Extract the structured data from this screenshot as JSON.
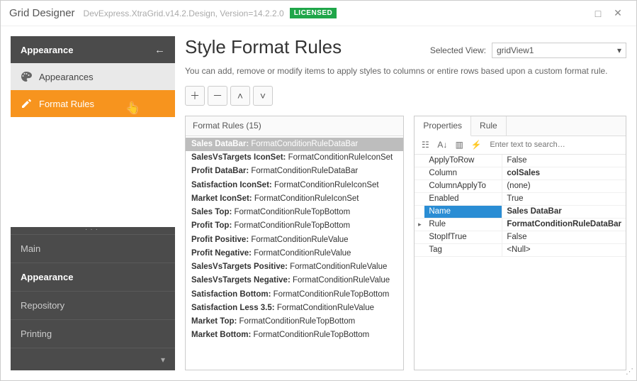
{
  "titlebar": {
    "title": "Grid Designer",
    "subtitle": "DevExpress.XtraGrid.v14.2.Design, Version=14.2.2.0",
    "badge": "LICENSED"
  },
  "sidebar": {
    "header": "Appearance",
    "items": [
      {
        "label": "Appearances"
      },
      {
        "label": "Format Rules"
      }
    ],
    "categories": [
      {
        "label": "Main"
      },
      {
        "label": "Appearance"
      },
      {
        "label": "Repository"
      },
      {
        "label": "Printing"
      }
    ]
  },
  "content": {
    "heading": "Style Format Rules",
    "selectedViewLabel": "Selected View:",
    "selectedView": "gridView1",
    "description": "You can add, remove or modify items to apply styles to columns or entire rows based upon a custom format rule.",
    "rulesPanelTitle": "Format Rules (15)",
    "tabs": {
      "properties": "Properties",
      "rule": "Rule"
    },
    "searchPlaceholder": "Enter text to search…",
    "rules": [
      {
        "name": "Sales DataBar",
        "type": "FormatConditionRuleDataBar",
        "selected": true
      },
      {
        "name": "SalesVsTargets IconSet",
        "type": "FormatConditionRuleIconSet"
      },
      {
        "name": "Profit DataBar",
        "type": "FormatConditionRuleDataBar"
      },
      {
        "name": "Satisfaction IconSet",
        "type": "FormatConditionRuleIconSet"
      },
      {
        "name": "Market IconSet",
        "type": "FormatConditionRuleIconSet"
      },
      {
        "name": "Sales Top",
        "type": "FormatConditionRuleTopBottom"
      },
      {
        "name": "Profit Top",
        "type": "FormatConditionRuleTopBottom"
      },
      {
        "name": "Profit Positive",
        "type": "FormatConditionRuleValue"
      },
      {
        "name": "Profit Negative",
        "type": "FormatConditionRuleValue"
      },
      {
        "name": "SalesVsTargets Positive",
        "type": "FormatConditionRuleValue"
      },
      {
        "name": "SalesVsTargets Negative",
        "type": "FormatConditionRuleValue"
      },
      {
        "name": "Satisfaction Bottom",
        "type": "FormatConditionRuleTopBottom"
      },
      {
        "name": "Satisfaction Less 3.5",
        "type": "FormatConditionRuleValue"
      },
      {
        "name": "Market Top",
        "type": "FormatConditionRuleTopBottom"
      },
      {
        "name": "Market Bottom",
        "type": "FormatConditionRuleTopBottom"
      }
    ],
    "properties": [
      {
        "name": "ApplyToRow",
        "value": "False"
      },
      {
        "name": "Column",
        "value": "colSales",
        "bold": true
      },
      {
        "name": "ColumnApplyTo",
        "value": "(none)"
      },
      {
        "name": "Enabled",
        "value": "True"
      },
      {
        "name": "Name",
        "value": "Sales DataBar",
        "selected": true,
        "bold": true
      },
      {
        "name": "Rule",
        "value": "FormatConditionRuleDataBar",
        "bold": true,
        "link": true
      },
      {
        "name": "StopIfTrue",
        "value": "False"
      },
      {
        "name": "Tag",
        "value": "<Null>"
      }
    ]
  },
  "colors": {
    "accent": "#f7941e",
    "badge": "#1fa649",
    "sidebar_bg": "#4b4b4b",
    "select_blue": "#2a8dd4",
    "rule_select": "#bdbdbd"
  }
}
